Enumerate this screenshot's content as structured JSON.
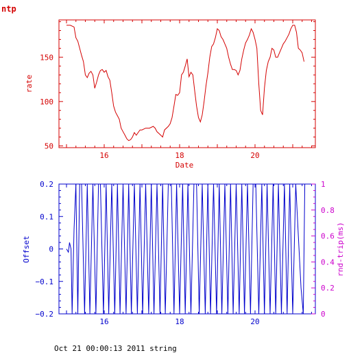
{
  "page": {
    "title": "ntp",
    "footer": "Oct 21 00:00:13 2011 string"
  },
  "colors": {
    "rate": "#d40000",
    "offset": "#0000cc",
    "rnd_trip": "#cc00cc",
    "axis_bg": "#ffffff"
  },
  "chart_data": [
    {
      "type": "line",
      "title": "",
      "xlabel": "Date",
      "ylabel": "rate",
      "xlim": [
        14.8,
        21.6
      ],
      "ylim": [
        48,
        192
      ],
      "x_ticks": [
        16,
        18,
        20
      ],
      "x_tick_labels": [
        "16",
        "18",
        "20"
      ],
      "y_ticks": [
        50,
        100,
        150
      ],
      "y_tick_labels": [
        "50",
        "100",
        "150"
      ],
      "grid": false,
      "series": [
        {
          "color": "#d40000",
          "x": [
            15.0,
            15.1,
            15.2,
            15.25,
            15.3,
            15.4,
            15.45,
            15.5,
            15.55,
            15.6,
            15.65,
            15.7,
            15.75,
            15.8,
            15.85,
            15.9,
            15.95,
            16.0,
            16.05,
            16.1,
            16.15,
            16.2,
            16.25,
            16.3,
            16.35,
            16.4,
            16.45,
            16.5,
            16.55,
            16.6,
            16.65,
            16.7,
            16.75,
            16.8,
            16.85,
            16.9,
            16.95,
            17.0,
            17.1,
            17.2,
            17.3,
            17.35,
            17.4,
            17.45,
            17.5,
            17.55,
            17.6,
            17.7,
            17.75,
            17.8,
            17.85,
            17.9,
            17.95,
            18.0,
            18.05,
            18.1,
            18.15,
            18.2,
            18.25,
            18.3,
            18.35,
            18.4,
            18.45,
            18.5,
            18.55,
            18.6,
            18.65,
            18.7,
            18.75,
            18.8,
            18.85,
            18.9,
            18.95,
            19.0,
            19.05,
            19.1,
            19.15,
            19.2,
            19.25,
            19.3,
            19.35,
            19.4,
            19.45,
            19.5,
            19.55,
            19.6,
            19.65,
            19.7,
            19.75,
            19.8,
            19.85,
            19.9,
            19.95,
            20.0,
            20.05,
            20.1,
            20.15,
            20.2,
            20.25,
            20.3,
            20.35,
            20.4,
            20.45,
            20.5,
            20.55,
            20.6,
            20.65,
            20.7,
            20.75,
            20.8,
            20.85,
            20.9,
            20.95,
            21.0,
            21.05,
            21.1,
            21.15,
            21.2,
            21.25,
            21.3
          ],
          "values": [
            186,
            186,
            184,
            172,
            168,
            152,
            145,
            130,
            127,
            132,
            134,
            130,
            115,
            122,
            130,
            135,
            136,
            133,
            135,
            128,
            124,
            110,
            95,
            88,
            84,
            80,
            70,
            66,
            62,
            58,
            56,
            57,
            60,
            65,
            62,
            65,
            68,
            68,
            70,
            70,
            72,
            70,
            66,
            64,
            62,
            60,
            68,
            72,
            75,
            82,
            95,
            108,
            107,
            110,
            130,
            133,
            140,
            148,
            128,
            133,
            130,
            112,
            95,
            82,
            77,
            85,
            100,
            118,
            132,
            150,
            162,
            165,
            172,
            182,
            180,
            173,
            170,
            165,
            160,
            150,
            142,
            136,
            136,
            135,
            130,
            135,
            148,
            158,
            166,
            170,
            175,
            182,
            178,
            170,
            160,
            120,
            90,
            85,
            115,
            135,
            145,
            150,
            160,
            158,
            150,
            150,
            155,
            160,
            165,
            168,
            172,
            176,
            182,
            186,
            186,
            178,
            160,
            158,
            155,
            145
          ],
          "stroke_width": 1
        }
      ]
    },
    {
      "type": "line",
      "title": "",
      "xlabel": "",
      "ylabel": "Offset",
      "y2label": "rnd-trip(ms)",
      "xlim": [
        14.8,
        21.6
      ],
      "ylim": [
        -0.2,
        0.2
      ],
      "y2lim": [
        0,
        1
      ],
      "x_ticks": [
        16,
        18,
        20
      ],
      "x_tick_labels": [
        "16",
        "18",
        "20"
      ],
      "y_ticks": [
        -0.2,
        -0.1,
        0,
        0.1,
        0.2
      ],
      "y_tick_labels": [
        "−0.2",
        "−0.1",
        "0",
        "0.1",
        "0.2"
      ],
      "y2_ticks": [
        0,
        0.2,
        0.4,
        0.6,
        0.8,
        1
      ],
      "y2_tick_labels": [
        "0",
        "0.2",
        "0.4",
        "0.6",
        "0.8",
        "1"
      ],
      "grid": false,
      "series": [
        {
          "color": "#0000cc",
          "x": [
            15.0,
            15.05,
            15.08,
            15.12,
            15.15,
            15.2,
            15.25,
            15.3,
            15.35,
            15.4,
            15.48,
            15.55,
            15.62,
            15.7,
            15.78,
            15.85,
            15.9,
            15.98,
            16.05,
            16.12,
            16.2,
            16.28,
            16.35,
            16.42,
            16.5,
            16.58,
            16.65,
            16.72,
            16.8,
            16.88,
            16.95,
            17.02,
            17.1,
            17.18,
            17.25,
            17.32,
            17.4,
            17.48,
            17.55,
            17.62,
            17.7,
            17.78,
            17.85,
            17.92,
            18.0,
            18.08,
            18.15,
            18.22,
            18.3,
            18.38,
            18.45,
            18.52,
            18.6,
            18.68,
            18.75,
            18.82,
            18.9,
            18.98,
            19.05,
            19.12,
            19.2,
            19.28,
            19.35,
            19.42,
            19.5,
            19.58,
            19.65,
            19.72,
            19.8,
            19.88,
            19.95,
            20.02,
            20.1,
            20.18,
            20.25,
            20.32,
            20.4,
            20.48,
            20.55,
            20.62,
            20.7,
            20.78,
            20.85,
            20.92,
            21.0,
            21.08,
            21.15,
            21.22,
            21.28,
            21.32
          ],
          "values": [
            0.0,
            -0.01,
            0.02,
            0.0,
            -0.2,
            0.06,
            0.2,
            -0.2,
            0.2,
            0.2,
            -0.2,
            0.2,
            -0.2,
            0.2,
            -0.2,
            0.2,
            0.2,
            -0.2,
            0.2,
            -0.2,
            0.2,
            -0.2,
            0.2,
            -0.2,
            0.2,
            -0.2,
            0.2,
            -0.2,
            0.2,
            -0.2,
            0.2,
            -0.2,
            0.2,
            -0.2,
            0.2,
            -0.2,
            0.2,
            -0.2,
            0.2,
            -0.2,
            0.2,
            0.2,
            -0.2,
            0.2,
            -0.2,
            0.2,
            -0.2,
            0.2,
            -0.2,
            0.2,
            0.2,
            -0.2,
            0.2,
            -0.2,
            0.2,
            -0.2,
            0.2,
            -0.2,
            0.2,
            -0.2,
            0.2,
            -0.2,
            0.2,
            -0.2,
            0.2,
            -0.2,
            0.2,
            -0.2,
            0.2,
            -0.2,
            0.2,
            0.2,
            -0.2,
            0.2,
            -0.2,
            0.2,
            -0.2,
            0.2,
            -0.2,
            0.2,
            -0.2,
            0.2,
            -0.2,
            0.2,
            -0.2,
            0.2,
            0.04,
            -0.12,
            -0.2,
            0.2
          ],
          "stroke_width": 1
        }
      ]
    }
  ]
}
